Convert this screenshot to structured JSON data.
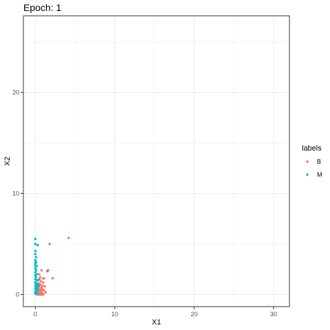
{
  "chart_data": {
    "type": "scatter",
    "title": "Epoch: 1",
    "xlabel": "X1",
    "ylabel": "X2",
    "xlim": [
      -1.5,
      32.0
    ],
    "ylim": [
      -1.2,
      27.6
    ],
    "xticks": [
      0,
      10,
      20,
      30
    ],
    "yticks": [
      0,
      10,
      20
    ],
    "grid": true,
    "legend": {
      "title": "labels",
      "position": "right"
    },
    "series": [
      {
        "name": "B",
        "color": "#F8766D",
        "points": [
          [
            4.2,
            5.6
          ],
          [
            1.8,
            5.0
          ],
          [
            0.8,
            2.4
          ],
          [
            1.5,
            2.3
          ],
          [
            1.1,
            1.6
          ],
          [
            2.2,
            1.6
          ],
          [
            0.7,
            1.3
          ],
          [
            1.0,
            1.2
          ],
          [
            0.6,
            1.0
          ],
          [
            0.9,
            0.9
          ],
          [
            0.5,
            0.8
          ],
          [
            0.8,
            0.7
          ],
          [
            1.2,
            0.8
          ],
          [
            0.3,
            0.6
          ],
          [
            0.6,
            0.5
          ],
          [
            0.9,
            0.5
          ],
          [
            0.4,
            0.4
          ],
          [
            0.7,
            0.3
          ],
          [
            1.1,
            0.4
          ],
          [
            0.3,
            0.3
          ],
          [
            0.5,
            0.2
          ],
          [
            0.8,
            0.2
          ],
          [
            0.2,
            0.1
          ],
          [
            0.4,
            0.1
          ],
          [
            0.6,
            0.05
          ],
          [
            0.9,
            0.1
          ],
          [
            0.3,
            0.0
          ],
          [
            0.5,
            0.0
          ],
          [
            0.7,
            0.0
          ],
          [
            1.0,
            0.0
          ],
          [
            0.2,
            0.9
          ],
          [
            0.4,
            1.1
          ],
          [
            0.3,
            1.4
          ],
          [
            0.6,
            1.7
          ],
          [
            0.5,
            2.0
          ],
          [
            0.2,
            0.5
          ],
          [
            0.1,
            0.2
          ],
          [
            1.3,
            0.2
          ],
          [
            1.0,
            1.6
          ],
          [
            0.4,
            0.7
          ]
        ]
      },
      {
        "name": "M",
        "color": "#00BFC4",
        "points": [
          [
            0.0,
            5.5
          ],
          [
            0.0,
            5.0
          ],
          [
            0.3,
            4.9
          ],
          [
            0.0,
            4.3
          ],
          [
            0.0,
            4.0
          ],
          [
            0.1,
            3.7
          ],
          [
            0.0,
            3.4
          ],
          [
            0.0,
            3.1
          ],
          [
            0.2,
            2.8
          ],
          [
            0.0,
            2.6
          ],
          [
            0.1,
            2.4
          ],
          [
            0.0,
            2.2
          ],
          [
            0.2,
            2.0
          ],
          [
            0.0,
            1.9
          ],
          [
            0.1,
            1.7
          ],
          [
            0.0,
            1.5
          ],
          [
            0.2,
            1.4
          ],
          [
            0.0,
            1.2
          ],
          [
            0.1,
            1.1
          ],
          [
            0.3,
            1.0
          ],
          [
            0.0,
            0.9
          ],
          [
            0.2,
            0.8
          ],
          [
            0.1,
            0.7
          ],
          [
            0.0,
            0.6
          ],
          [
            0.3,
            0.5
          ],
          [
            0.1,
            0.4
          ],
          [
            0.0,
            0.3
          ],
          [
            0.2,
            0.2
          ],
          [
            0.0,
            0.1
          ],
          [
            0.1,
            0.05
          ],
          [
            1.6,
            2.4
          ],
          [
            0.5,
            1.5
          ],
          [
            0.4,
            0.9
          ],
          [
            0.0,
            2.9
          ],
          [
            0.1,
            3.2
          ]
        ]
      }
    ]
  }
}
